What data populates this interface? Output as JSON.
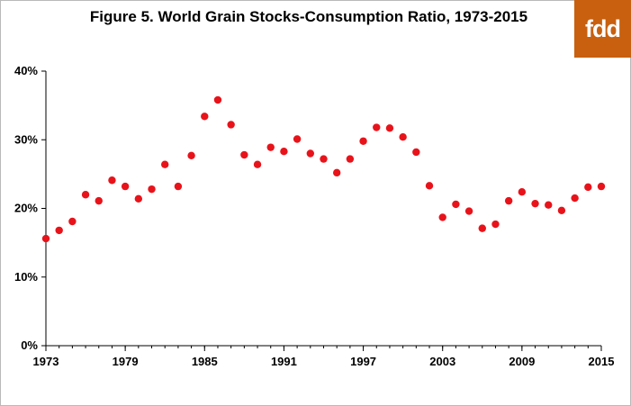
{
  "logo": {
    "text": "fdd",
    "color": "#c8600f"
  },
  "chart_data": {
    "type": "scatter",
    "title": "Figure 5. World Grain Stocks-Consumption Ratio, 1973-2015",
    "xlabel": "",
    "ylabel": "",
    "xlim": [
      1973,
      2015
    ],
    "ylim": [
      0,
      40
    ],
    "x_ticks": [
      "1973",
      "1979",
      "1985",
      "1991",
      "1997",
      "2003",
      "2009",
      "2015"
    ],
    "y_ticks": [
      "0%",
      "10%",
      "20%",
      "30%",
      "40%"
    ],
    "grid": false,
    "marker_color": "#e8131a",
    "x": [
      1973,
      1974,
      1975,
      1976,
      1977,
      1978,
      1979,
      1980,
      1981,
      1982,
      1983,
      1984,
      1985,
      1986,
      1987,
      1988,
      1989,
      1990,
      1991,
      1992,
      1993,
      1994,
      1995,
      1996,
      1997,
      1998,
      1999,
      2000,
      2001,
      2002,
      2003,
      2004,
      2005,
      2006,
      2007,
      2008,
      2009,
      2010,
      2011,
      2012,
      2013,
      2014,
      2015
    ],
    "y": [
      15.6,
      16.8,
      18.1,
      22.0,
      21.1,
      24.1,
      23.2,
      21.4,
      22.8,
      26.4,
      23.2,
      27.7,
      33.4,
      35.8,
      32.2,
      27.8,
      26.4,
      28.9,
      28.3,
      30.1,
      28.0,
      27.2,
      25.2,
      27.2,
      29.8,
      31.8,
      31.7,
      30.4,
      28.2,
      23.3,
      18.7,
      20.6,
      19.6,
      17.1,
      17.7,
      21.1,
      22.4,
      20.7,
      20.5,
      19.7,
      21.5,
      23.1,
      23.2
    ]
  }
}
